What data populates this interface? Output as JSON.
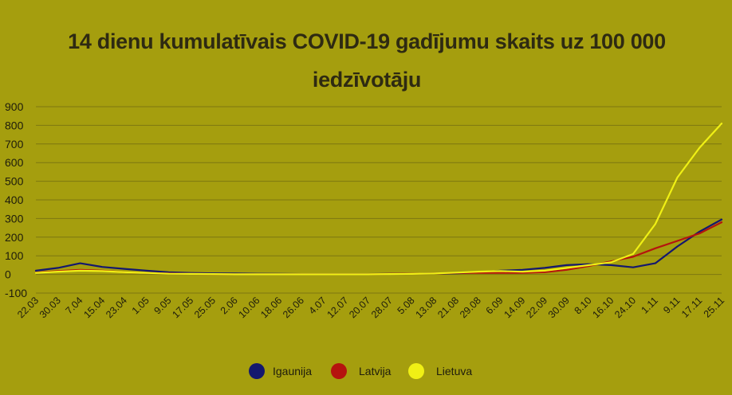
{
  "chart_data": {
    "type": "line",
    "title": "14 dienu kumulatīvais COVID-19 gadījumu skaits uz 100 000 iedzīvotāju",
    "xlabel": "",
    "ylabel": "",
    "ylim": [
      -100,
      900
    ],
    "yticks": [
      "900",
      "800",
      "700",
      "600",
      "500",
      "400",
      "300",
      "200",
      "100",
      "0",
      "-100"
    ],
    "ytick_values": [
      900,
      800,
      700,
      600,
      500,
      400,
      300,
      200,
      100,
      0,
      -100
    ],
    "grid": true,
    "legend_position": "bottom",
    "x": [
      "22.03",
      "30.03",
      "7.04",
      "15.04",
      "23.04",
      "1.05",
      "9.05",
      "17.05",
      "25.05",
      "2.06",
      "10.06",
      "18.06",
      "26.06",
      "4.07",
      "12.07",
      "20.07",
      "28.07",
      "5.08",
      "13.08",
      "21.08",
      "29.08",
      "6.09",
      "14.09",
      "22.09",
      "30.09",
      "8.10",
      "16.10",
      "24.10",
      "1.11",
      "9.11",
      "17.11",
      "25.11"
    ],
    "series": [
      {
        "name": "Igaunija",
        "color": "#14186e",
        "values": [
          20,
          35,
          60,
          40,
          30,
          20,
          12,
          8,
          6,
          5,
          4,
          3,
          2,
          2,
          2,
          2,
          3,
          4,
          5,
          6,
          10,
          20,
          25,
          35,
          50,
          55,
          50,
          38,
          60,
          150,
          230,
          295
        ]
      },
      {
        "name": "Latvija",
        "color": "#b5140e",
        "values": [
          10,
          18,
          25,
          20,
          12,
          8,
          5,
          3,
          2,
          1,
          1,
          1,
          1,
          1,
          1,
          1,
          3,
          4,
          5,
          8,
          8,
          8,
          8,
          12,
          25,
          45,
          70,
          95,
          140,
          180,
          220,
          280
        ]
      },
      {
        "name": "Lietuva",
        "color": "#f0f015",
        "values": [
          8,
          15,
          20,
          18,
          12,
          8,
          4,
          3,
          2,
          1,
          1,
          1,
          1,
          1,
          1,
          1,
          2,
          3,
          5,
          10,
          15,
          18,
          15,
          20,
          35,
          50,
          65,
          110,
          270,
          520,
          680,
          810
        ]
      }
    ]
  }
}
